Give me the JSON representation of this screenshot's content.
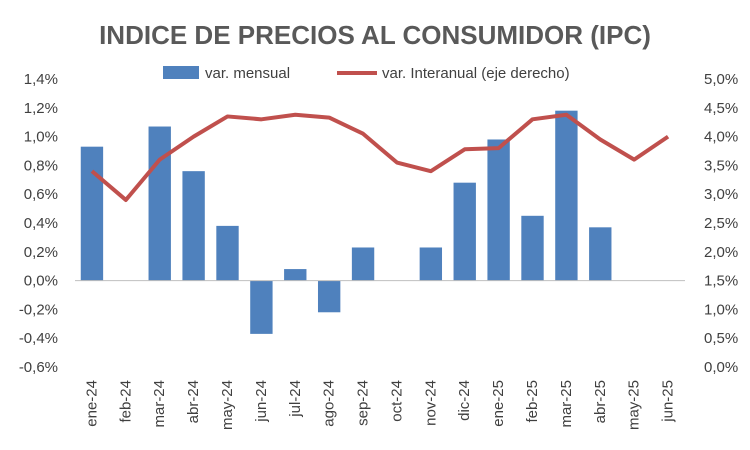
{
  "chart_data": {
    "type": "bar+line",
    "title": "INDICE DE PRECIOS AL CONSUMIDOR (IPC)",
    "categories": [
      "ene-24",
      "feb-24",
      "mar-24",
      "abr-24",
      "may-24",
      "jun-24",
      "jul-24",
      "ago-24",
      "sep-24",
      "oct-24",
      "nov-24",
      "dic-24",
      "ene-25",
      "feb-25",
      "mar-25",
      "abr-25",
      "may-25",
      "jun-25"
    ],
    "series": [
      {
        "name": "var. mensual",
        "type": "bar",
        "axis": "left",
        "color": "#4f81bd",
        "values": [
          0.93,
          0.0,
          1.07,
          0.76,
          0.38,
          -0.37,
          0.08,
          -0.22,
          0.23,
          0.0,
          0.23,
          0.68,
          0.98,
          0.45,
          1.18,
          0.37,
          null,
          null
        ]
      },
      {
        "name": "var. Interanual (eje derecho)",
        "type": "line",
        "axis": "right",
        "color": "#c0504d",
        "values": [
          3.4,
          2.9,
          3.6,
          4.0,
          4.35,
          4.3,
          4.38,
          4.33,
          4.05,
          3.55,
          3.4,
          3.78,
          3.8,
          4.3,
          4.38,
          3.95,
          3.6,
          4.0
        ]
      }
    ],
    "ylim_left": [
      -0.6,
      1.4
    ],
    "yticks_left": [
      "-0,6%",
      "-0,4%",
      "-0,2%",
      "0,0%",
      "0,2%",
      "0,4%",
      "0,6%",
      "0,8%",
      "1,0%",
      "1,2%",
      "1,4%"
    ],
    "ylim_right": [
      0.0,
      5.0
    ],
    "yticks_right": [
      "0,0%",
      "0,5%",
      "1,0%",
      "1,5%",
      "2,0%",
      "2,5%",
      "3,0%",
      "3,5%",
      "4,0%",
      "4,5%",
      "5,0%"
    ],
    "legend_position": "top"
  }
}
